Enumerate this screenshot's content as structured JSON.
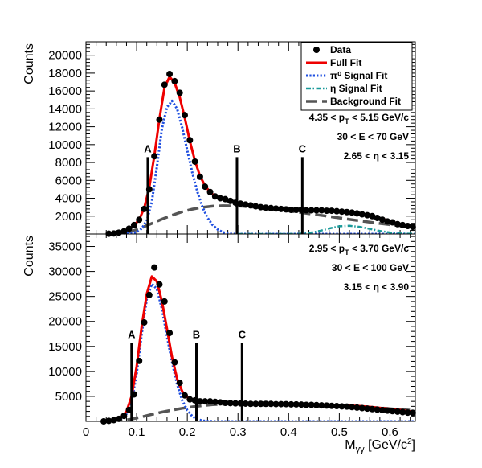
{
  "chart_data": [
    {
      "type": "scatter",
      "panel": "top",
      "xlim": [
        0,
        0.65
      ],
      "ylim": [
        0,
        21500
      ],
      "ylabel": "Counts",
      "yticks": [
        2000,
        4000,
        6000,
        8000,
        10000,
        12000,
        14000,
        16000,
        18000,
        20000
      ],
      "ytick_labels": [
        "2000",
        "4000",
        "6000",
        "8000",
        "10000",
        "12000",
        "14000",
        "16000",
        "18000",
        "20000"
      ],
      "annotations": [
        {
          "parts": [
            "4.35 < p",
            "T",
            " < 5.15 GeV/c"
          ]
        },
        {
          "parts": [
            "30 < E < 70 GeV"
          ]
        },
        {
          "parts": [
            "2.65 < ",
            "η",
            " < 3.15"
          ]
        }
      ],
      "legend": {
        "placement": "top-right",
        "entries": [
          {
            "label": "Data",
            "style": "marker"
          },
          {
            "label": "Full Fit",
            "style": "solid",
            "color": "#ee0000"
          },
          {
            "label": "π⁰ Signal Fit",
            "style": "dotted",
            "color": "#1f4fe0"
          },
          {
            "label": "η Signal Fit",
            "style": "dashdot",
            "color": "#1a9a9a"
          },
          {
            "label": "Background Fit",
            "style": "dashed",
            "color": "#555555"
          }
        ]
      },
      "markers": [
        {
          "label": "A",
          "x": 0.122,
          "y": 8600
        },
        {
          "label": "B",
          "x": 0.298,
          "y": 8600
        },
        {
          "label": "C",
          "x": 0.427,
          "y": 8600
        }
      ],
      "series": [
        {
          "name": "Data",
          "role": "data",
          "color": "#000000",
          "x": [
            0.045,
            0.055,
            0.065,
            0.075,
            0.085,
            0.095,
            0.105,
            0.115,
            0.125,
            0.135,
            0.145,
            0.155,
            0.165,
            0.175,
            0.185,
            0.195,
            0.205,
            0.215,
            0.225,
            0.235,
            0.245,
            0.255,
            0.265,
            0.275,
            0.285,
            0.295,
            0.305,
            0.315,
            0.325,
            0.335,
            0.345,
            0.355,
            0.365,
            0.375,
            0.385,
            0.395,
            0.405,
            0.415,
            0.425,
            0.435,
            0.445,
            0.455,
            0.465,
            0.475,
            0.485,
            0.495,
            0.505,
            0.515,
            0.525,
            0.535,
            0.545,
            0.555,
            0.565,
            0.575,
            0.585,
            0.595,
            0.605,
            0.615,
            0.625,
            0.635,
            0.645
          ],
          "y": [
            30,
            60,
            150,
            300,
            600,
            1000,
            1600,
            2800,
            5000,
            8700,
            12800,
            16700,
            17900,
            17100,
            15800,
            13300,
            10500,
            8100,
            6400,
            5300,
            4700,
            4200,
            4000,
            3900,
            3700,
            3500,
            3400,
            3300,
            3200,
            3100,
            3000,
            2950,
            2900,
            2850,
            2800,
            2750,
            2700,
            2700,
            2700,
            2650,
            2650,
            2650,
            2650,
            2600,
            2600,
            2550,
            2500,
            2450,
            2400,
            2300,
            2200,
            2100,
            2000,
            1800,
            1600,
            1400,
            1300,
            1100,
            1000,
            900,
            800
          ]
        },
        {
          "name": "Full Fit",
          "role": "fit",
          "style": "solid",
          "color": "#ee0000",
          "x": [
            0.045,
            0.055,
            0.065,
            0.075,
            0.085,
            0.095,
            0.105,
            0.115,
            0.125,
            0.135,
            0.145,
            0.155,
            0.165,
            0.175,
            0.185,
            0.195,
            0.205,
            0.215,
            0.225,
            0.235,
            0.245,
            0.255,
            0.265,
            0.275,
            0.285,
            0.295,
            0.305,
            0.315,
            0.325,
            0.335,
            0.345,
            0.355,
            0.365,
            0.375,
            0.385,
            0.395,
            0.405,
            0.415,
            0.425,
            0.435,
            0.445,
            0.455,
            0.465,
            0.475,
            0.485,
            0.495,
            0.505,
            0.515,
            0.525,
            0.535,
            0.545,
            0.555,
            0.565,
            0.575,
            0.585,
            0.595,
            0.605,
            0.615,
            0.625,
            0.635,
            0.645,
            0.65
          ],
          "y": [
            30,
            60,
            140,
            280,
            560,
            950,
            1600,
            2900,
            5200,
            8800,
            12900,
            16400,
            17600,
            16900,
            15300,
            13000,
            10400,
            8200,
            6500,
            5400,
            4700,
            4200,
            3950,
            3800,
            3650,
            3500,
            3400,
            3300,
            3200,
            3100,
            3050,
            2950,
            2900,
            2850,
            2800,
            2750,
            2720,
            2700,
            2700,
            2680,
            2660,
            2650,
            2640,
            2620,
            2600,
            2560,
            2520,
            2470,
            2400,
            2320,
            2230,
            2120,
            2000,
            1850,
            1680,
            1520,
            1360,
            1200,
            1060,
            930,
            820,
            780
          ]
        },
        {
          "name": "π⁰ Signal Fit",
          "role": "fit",
          "style": "dotted",
          "color": "#1f4fe0",
          "x": [
            0.06,
            0.07,
            0.08,
            0.09,
            0.1,
            0.11,
            0.12,
            0.13,
            0.14,
            0.15,
            0.16,
            0.17,
            0.18,
            0.19,
            0.2,
            0.21,
            0.22,
            0.23,
            0.24,
            0.25,
            0.26,
            0.27,
            0.28,
            0.29,
            0.3,
            0.31,
            0.32,
            0.34,
            0.36,
            0.38,
            0.4,
            0.45,
            0.5,
            0.55,
            0.6,
            0.65
          ],
          "y": [
            0,
            10,
            30,
            90,
            220,
            600,
            1500,
            3600,
            7500,
            11800,
            14200,
            14900,
            14000,
            11900,
            9300,
            6800,
            4700,
            3000,
            1800,
            1000,
            500,
            200,
            60,
            10,
            0,
            0,
            0,
            0,
            0,
            0,
            0,
            0,
            0,
            0,
            0,
            0
          ]
        },
        {
          "name": "η Signal Fit",
          "role": "fit",
          "style": "dashdot",
          "color": "#1a9a9a",
          "x": [
            0.3,
            0.35,
            0.4,
            0.42,
            0.44,
            0.46,
            0.48,
            0.5,
            0.52,
            0.54,
            0.56,
            0.58,
            0.6,
            0.62,
            0.65
          ],
          "y": [
            0,
            0,
            0,
            30,
            120,
            320,
            620,
            860,
            920,
            800,
            580,
            340,
            160,
            60,
            10
          ]
        },
        {
          "name": "Background Fit",
          "role": "fit",
          "style": "dashed",
          "color": "#555555",
          "x": [
            0.05,
            0.07,
            0.09,
            0.11,
            0.13,
            0.15,
            0.17,
            0.19,
            0.21,
            0.23,
            0.25,
            0.27,
            0.29,
            0.31,
            0.33,
            0.35,
            0.37,
            0.39,
            0.41,
            0.43,
            0.45,
            0.47,
            0.49,
            0.51,
            0.53,
            0.55,
            0.57,
            0.59,
            0.61,
            0.63,
            0.65
          ],
          "y": [
            0,
            60,
            300,
            700,
            1180,
            1660,
            2100,
            2480,
            2780,
            2990,
            3110,
            3160,
            3150,
            3100,
            3010,
            2900,
            2780,
            2650,
            2510,
            2360,
            2200,
            2040,
            1880,
            1720,
            1560,
            1400,
            1250,
            1110,
            980,
            860,
            760
          ]
        }
      ]
    },
    {
      "type": "scatter",
      "panel": "bottom",
      "xlim": [
        0,
        0.65
      ],
      "ylim": [
        0,
        37500
      ],
      "xlabel_parts": [
        "M",
        "γγ",
        " [GeV/c",
        "2",
        "]"
      ],
      "ylabel": "Counts",
      "xticks": [
        0,
        0.1,
        0.2,
        0.3,
        0.4,
        0.5,
        0.6
      ],
      "xtick_labels": [
        "0",
        "0.1",
        "0.2",
        "0.3",
        "0.4",
        "0.5",
        "0.6"
      ],
      "yticks": [
        5000,
        10000,
        15000,
        20000,
        25000,
        30000,
        35000
      ],
      "ytick_labels": [
        "5000",
        "10000",
        "15000",
        "20000",
        "25000",
        "30000",
        "35000"
      ],
      "annotations": [
        {
          "parts": [
            "2.95 < p",
            "T",
            " < 3.70 GeV/c"
          ]
        },
        {
          "parts": [
            "30 < E < 100 GeV"
          ]
        },
        {
          "parts": [
            "3.15 < ",
            "η",
            " < 3.90"
          ]
        }
      ],
      "markers": [
        {
          "label": "A",
          "x": 0.09,
          "y": 15700
        },
        {
          "label": "B",
          "x": 0.218,
          "y": 15700
        },
        {
          "label": "C",
          "x": 0.308,
          "y": 15700
        }
      ],
      "series": [
        {
          "name": "Data",
          "role": "data",
          "color": "#000000",
          "x": [
            0.035,
            0.045,
            0.055,
            0.065,
            0.075,
            0.085,
            0.095,
            0.105,
            0.115,
            0.125,
            0.135,
            0.145,
            0.155,
            0.165,
            0.175,
            0.185,
            0.195,
            0.205,
            0.215,
            0.225,
            0.235,
            0.245,
            0.255,
            0.265,
            0.275,
            0.285,
            0.295,
            0.305,
            0.315,
            0.325,
            0.335,
            0.345,
            0.355,
            0.365,
            0.375,
            0.385,
            0.395,
            0.405,
            0.415,
            0.425,
            0.435,
            0.445,
            0.455,
            0.465,
            0.475,
            0.485,
            0.495,
            0.505,
            0.515,
            0.525,
            0.535,
            0.545,
            0.555,
            0.565,
            0.575,
            0.585,
            0.595,
            0.605,
            0.615,
            0.625,
            0.635,
            0.645
          ],
          "y": [
            0,
            100,
            250,
            500,
            1100,
            2300,
            5400,
            12100,
            19800,
            25300,
            30800,
            27400,
            24000,
            17700,
            11800,
            7700,
            5200,
            4400,
            4200,
            4000,
            4000,
            4000,
            3900,
            3800,
            3700,
            3650,
            3600,
            3600,
            3550,
            3500,
            3500,
            3500,
            3500,
            3500,
            3450,
            3450,
            3450,
            3400,
            3400,
            3350,
            3300,
            3300,
            3250,
            3200,
            3150,
            3100,
            3050,
            3000,
            2950,
            2850,
            2750,
            2650,
            2550,
            2450,
            2350,
            2250,
            2150,
            2050,
            1950,
            1850,
            1750,
            1700
          ]
        },
        {
          "name": "Full Fit",
          "role": "fit",
          "style": "solid",
          "color": "#ee0000",
          "x": [
            0.03,
            0.04,
            0.05,
            0.06,
            0.07,
            0.08,
            0.09,
            0.1,
            0.11,
            0.12,
            0.13,
            0.14,
            0.15,
            0.16,
            0.17,
            0.18,
            0.19,
            0.2,
            0.21,
            0.22,
            0.23,
            0.24,
            0.25,
            0.26,
            0.28,
            0.3,
            0.32,
            0.34,
            0.36,
            0.38,
            0.4,
            0.42,
            0.44,
            0.46,
            0.48,
            0.5,
            0.52,
            0.54,
            0.56,
            0.58,
            0.6,
            0.62,
            0.64,
            0.65
          ],
          "y": [
            0,
            50,
            150,
            400,
            900,
            2000,
            5000,
            11000,
            19000,
            25500,
            29000,
            28000,
            24000,
            18500,
            12800,
            8500,
            6000,
            4800,
            4300,
            4100,
            4000,
            3950,
            3900,
            3850,
            3750,
            3650,
            3600,
            3550,
            3520,
            3500,
            3480,
            3450,
            3400,
            3350,
            3300,
            3250,
            3150,
            3050,
            2900,
            2700,
            2500,
            2250,
            2000,
            1850
          ]
        },
        {
          "name": "π⁰ Signal Fit",
          "role": "fit",
          "style": "dotted",
          "color": "#1f4fe0",
          "x": [
            0.04,
            0.05,
            0.06,
            0.07,
            0.08,
            0.09,
            0.1,
            0.11,
            0.12,
            0.13,
            0.14,
            0.15,
            0.16,
            0.17,
            0.18,
            0.19,
            0.2,
            0.21,
            0.22,
            0.23,
            0.24,
            0.25,
            0.26,
            0.28,
            0.3,
            0.35,
            0.4,
            0.45,
            0.5,
            0.55,
            0.6,
            0.65
          ],
          "y": [
            0,
            30,
            200,
            600,
            1500,
            4000,
            9500,
            17500,
            24500,
            27500,
            26500,
            22500,
            17000,
            11800,
            7400,
            4200,
            2200,
            1000,
            400,
            150,
            50,
            10,
            0,
            0,
            0,
            0,
            0,
            0,
            0,
            0,
            0,
            0
          ]
        },
        {
          "name": "Background Fit",
          "role": "fit",
          "style": "dashed",
          "color": "#555555",
          "x": [
            0.05,
            0.07,
            0.09,
            0.11,
            0.13,
            0.15,
            0.17,
            0.19,
            0.21,
            0.23,
            0.25,
            0.27,
            0.29,
            0.31,
            0.33,
            0.35,
            0.37,
            0.39,
            0.41,
            0.43,
            0.45,
            0.47,
            0.49,
            0.51,
            0.53,
            0.55,
            0.57,
            0.59,
            0.61,
            0.63,
            0.65
          ],
          "y": [
            0,
            100,
            450,
            900,
            1400,
            1850,
            2250,
            2600,
            2900,
            3150,
            3330,
            3450,
            3530,
            3580,
            3600,
            3600,
            3580,
            3550,
            3500,
            3440,
            3370,
            3290,
            3200,
            3100,
            2990,
            2870,
            2740,
            2600,
            2450,
            2300,
            2150
          ]
        }
      ]
    }
  ]
}
